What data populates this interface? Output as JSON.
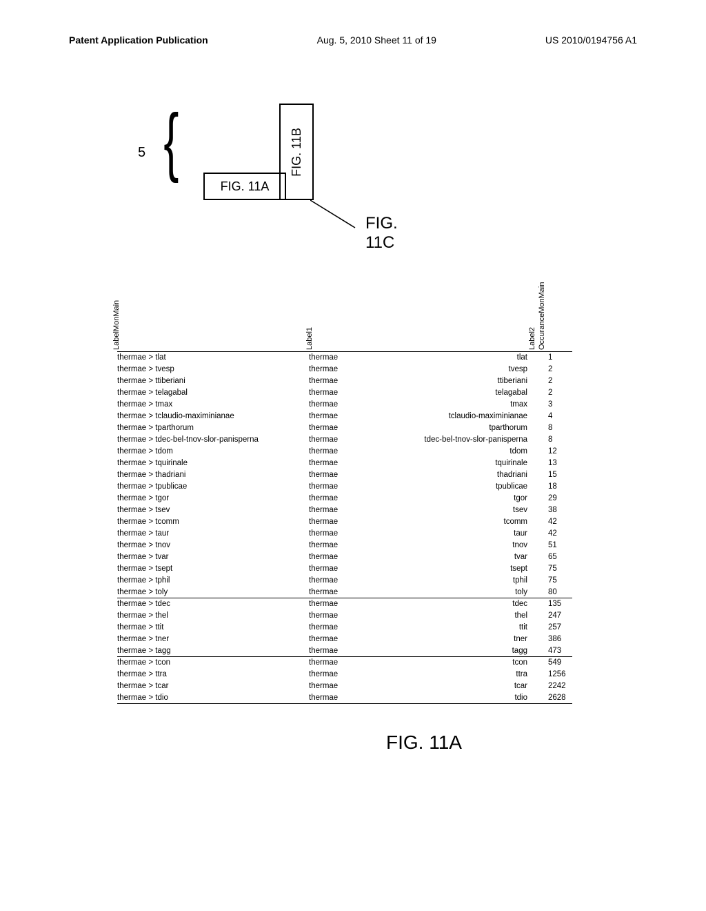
{
  "header": {
    "left": "Patent Application Publication",
    "center": "Aug. 5, 2010  Sheet 11 of 19",
    "right": "US 2010/0194756 A1"
  },
  "diagram": {
    "brace_label": "5",
    "box_a": "FIG. 11A",
    "box_b": "FIG. 11B",
    "fig_c": "FIG. 11C"
  },
  "table": {
    "headers": {
      "c1": "LabelMonMain",
      "c2": "Label1",
      "c3": "Label2",
      "c4": "OccuranceMonMain"
    },
    "rows": [
      {
        "c1": "thermae > tlat",
        "c2": "thermae",
        "c3": "tlat",
        "c4": "1",
        "hr": false
      },
      {
        "c1": "thermae > tvesp",
        "c2": "thermae",
        "c3": "tvesp",
        "c4": "2",
        "hr": false
      },
      {
        "c1": "thermae > ttiberiani",
        "c2": "thermae",
        "c3": "ttiberiani",
        "c4": "2",
        "hr": false
      },
      {
        "c1": "thermae > telagabal",
        "c2": "thermae",
        "c3": "telagabal",
        "c4": "2",
        "hr": false
      },
      {
        "c1": "thermae > tmax",
        "c2": "thermae",
        "c3": "tmax",
        "c4": "3",
        "hr": false
      },
      {
        "c1": "thermae > tclaudio-maximinianae",
        "c2": "thermae",
        "c3": "tclaudio-maximinianae",
        "c4": "4",
        "hr": false
      },
      {
        "c1": "thermae > tparthorum",
        "c2": "thermae",
        "c3": "tparthorum",
        "c4": "8",
        "hr": false
      },
      {
        "c1": "thermae > tdec-bel-tnov-slor-panisperna",
        "c2": "thermae",
        "c3": "tdec-bel-tnov-slor-panisperna",
        "c4": "8",
        "hr": false
      },
      {
        "c1": "thermae > tdom",
        "c2": "thermae",
        "c3": "tdom",
        "c4": "12",
        "hr": false
      },
      {
        "c1": "thermae > tquirinale",
        "c2": "thermae",
        "c3": "tquirinale",
        "c4": "13",
        "hr": false
      },
      {
        "c1": "thermae > thadriani",
        "c2": "thermae",
        "c3": "thadriani",
        "c4": "15",
        "hr": false
      },
      {
        "c1": "thermae > tpublicae",
        "c2": "thermae",
        "c3": "tpublicae",
        "c4": "18",
        "hr": false
      },
      {
        "c1": "thermae > tgor",
        "c2": "thermae",
        "c3": "tgor",
        "c4": "29",
        "hr": false
      },
      {
        "c1": "thermae > tsev",
        "c2": "thermae",
        "c3": "tsev",
        "c4": "38",
        "hr": false
      },
      {
        "c1": "thermae > tcomm",
        "c2": "thermae",
        "c3": "tcomm",
        "c4": "42",
        "hr": false
      },
      {
        "c1": "thermae > taur",
        "c2": "thermae",
        "c3": "taur",
        "c4": "42",
        "hr": false
      },
      {
        "c1": "thermae > tnov",
        "c2": "thermae",
        "c3": "tnov",
        "c4": "51",
        "hr": false
      },
      {
        "c1": "thermae > tvar",
        "c2": "thermae",
        "c3": "tvar",
        "c4": "65",
        "hr": false
      },
      {
        "c1": "thermae > tsept",
        "c2": "thermae",
        "c3": "tsept",
        "c4": "75",
        "hr": false
      },
      {
        "c1": "thermae > tphil",
        "c2": "thermae",
        "c3": "tphil",
        "c4": "75",
        "hr": false
      },
      {
        "c1": "thermae > toly",
        "c2": "thermae",
        "c3": "toly",
        "c4": "80",
        "hr": true
      },
      {
        "c1": "thermae > tdec",
        "c2": "thermae",
        "c3": "tdec",
        "c4": "135",
        "hr": false
      },
      {
        "c1": "thermae > thel",
        "c2": "thermae",
        "c3": "thel",
        "c4": "247",
        "hr": false
      },
      {
        "c1": "thermae > ttit",
        "c2": "thermae",
        "c3": "ttit",
        "c4": "257",
        "hr": false
      },
      {
        "c1": "thermae > tner",
        "c2": "thermae",
        "c3": "tner",
        "c4": "386",
        "hr": false
      },
      {
        "c1": "thermae > tagg",
        "c2": "thermae",
        "c3": "tagg",
        "c4": "473",
        "hr": true
      },
      {
        "c1": "thermae > tcon",
        "c2": "thermae",
        "c3": "tcon",
        "c4": "549",
        "hr": false
      },
      {
        "c1": "thermae > ttra",
        "c2": "thermae",
        "c3": "ttra",
        "c4": "1256",
        "hr": false
      },
      {
        "c1": "thermae > tcar",
        "c2": "thermae",
        "c3": "tcar",
        "c4": "2242",
        "hr": false
      },
      {
        "c1": "thermae > tdio",
        "c2": "thermae",
        "c3": "tdio",
        "c4": "2628",
        "hr": true
      }
    ]
  },
  "caption": "FIG. 11A"
}
